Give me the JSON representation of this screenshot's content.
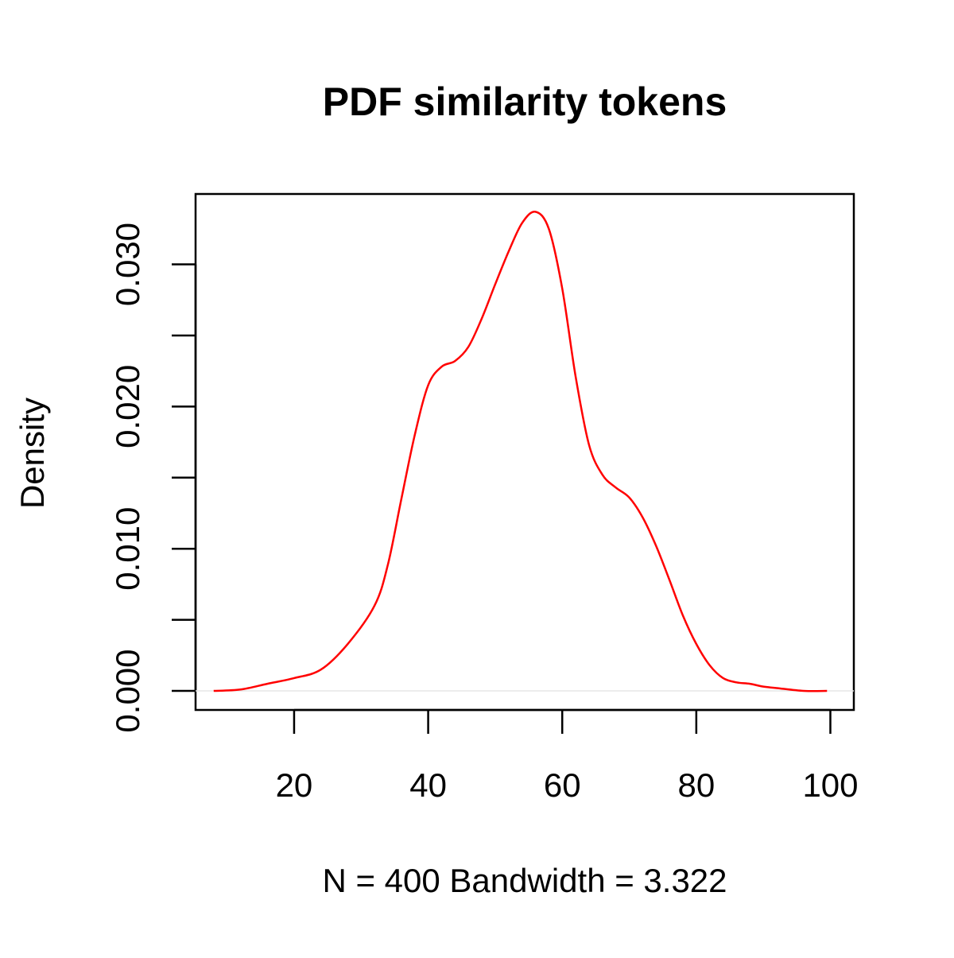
{
  "chart_data": {
    "type": "line",
    "title": "PDF similarity tokens",
    "xlabel": "N = 400   Bandwidth = 3.322",
    "ylabel": "Density",
    "xlim": [
      5.3,
      103.5
    ],
    "ylim": [
      -0.00134,
      0.03495
    ],
    "x_ticks": [
      20,
      40,
      60,
      80,
      100
    ],
    "x_tick_labels": [
      "20",
      "40",
      "60",
      "80",
      "100"
    ],
    "y_ticks": [
      0.0,
      0.005,
      0.01,
      0.015,
      0.02,
      0.025,
      0.03
    ],
    "y_tick_labels": [
      "0.000",
      "",
      "0.010",
      "",
      "0.020",
      "",
      "0.030"
    ],
    "grid": false,
    "zero_line": true,
    "series": [
      {
        "color": "#ff0000",
        "x": [
          8,
          12,
          16,
          20,
          24,
          28,
          32,
          34,
          36,
          38,
          40,
          42,
          44,
          46,
          48,
          50,
          52,
          54,
          56,
          58,
          60,
          62,
          64,
          66,
          68,
          70,
          72,
          74,
          76,
          78,
          80,
          82,
          84,
          86,
          88,
          90,
          92,
          96,
          99.5
        ],
        "y": [
          0.0,
          0.0001,
          0.0005,
          0.0009,
          0.0015,
          0.0033,
          0.006,
          0.0089,
          0.0135,
          0.018,
          0.0215,
          0.0228,
          0.0232,
          0.0242,
          0.0262,
          0.0286,
          0.0309,
          0.0329,
          0.0337,
          0.0325,
          0.0283,
          0.0221,
          0.0173,
          0.0152,
          0.0143,
          0.0136,
          0.0122,
          0.0102,
          0.0078,
          0.0053,
          0.0033,
          0.0018,
          0.0009,
          0.0006,
          0.0005,
          0.0003,
          0.0002,
          0.0,
          0.0
        ]
      }
    ]
  }
}
